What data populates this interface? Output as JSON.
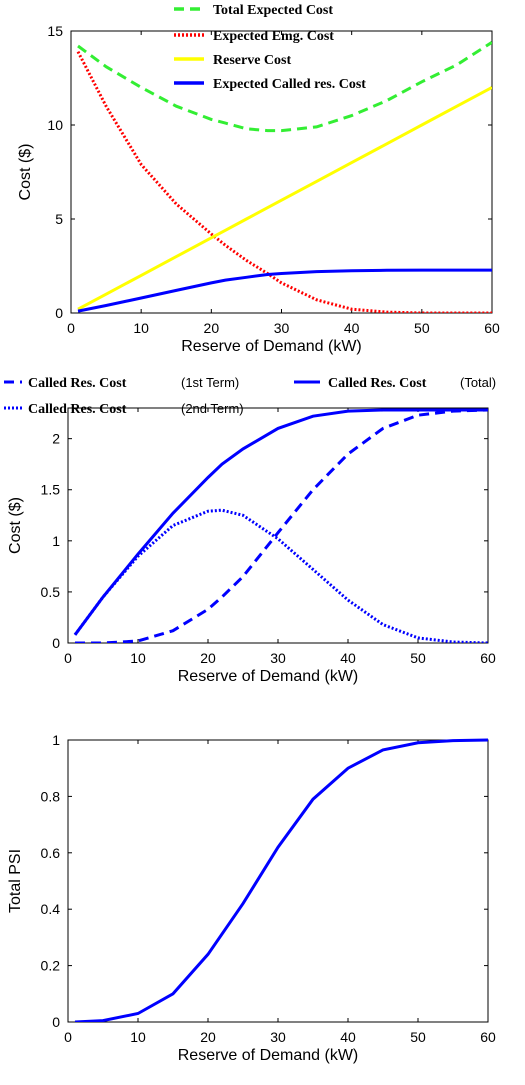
{
  "chart_data": [
    {
      "type": "line",
      "xlabel": "Reserve of Demand (kW)",
      "ylabel": "Cost ($)",
      "xlim": [
        0,
        60
      ],
      "ylim": [
        0,
        15
      ],
      "xticks": [
        0,
        10,
        20,
        30,
        40,
        50,
        60
      ],
      "yticks": [
        0,
        5,
        10,
        15
      ],
      "x": [
        1,
        5,
        10,
        15,
        20,
        22,
        25,
        28,
        30,
        35,
        40,
        45,
        50,
        55,
        60
      ],
      "series": [
        {
          "name": "Total Expected Cost",
          "color": "#33ee33",
          "style": "dashed",
          "values": [
            14.2,
            13.1,
            12.0,
            11.0,
            10.3,
            10.1,
            9.8,
            9.7,
            9.7,
            9.9,
            10.5,
            11.3,
            12.3,
            13.2,
            14.4
          ]
        },
        {
          "name": "Expected Emg. Cost",
          "color": "#ff0000",
          "style": "dotted",
          "values": [
            13.9,
            11.0,
            7.9,
            5.8,
            4.2,
            3.6,
            2.8,
            2.1,
            1.6,
            0.7,
            0.2,
            0.05,
            0.0,
            0.0,
            0.0
          ]
        },
        {
          "name": "Reserve Cost",
          "color": "#ffff00",
          "style": "solid",
          "values": [
            0.2,
            1.0,
            2.0,
            3.0,
            4.0,
            4.4,
            5.0,
            5.6,
            6.0,
            7.0,
            8.0,
            9.0,
            10.0,
            11.0,
            12.0
          ]
        },
        {
          "name": "Expected Called res. Cost",
          "color": "#0000ff",
          "style": "solid",
          "values": [
            0.1,
            0.4,
            0.8,
            1.2,
            1.6,
            1.75,
            1.9,
            2.05,
            2.1,
            2.2,
            2.25,
            2.27,
            2.28,
            2.28,
            2.28
          ]
        }
      ]
    },
    {
      "type": "line",
      "xlabel": "Reserve of Demand (kW)",
      "ylabel": "Cost ($)",
      "xlim": [
        0,
        60
      ],
      "ylim": [
        0,
        2.3
      ],
      "xticks": [
        0,
        10,
        20,
        30,
        40,
        50,
        60
      ],
      "yticks": [
        0,
        0.5,
        1,
        1.5,
        2
      ],
      "x": [
        1,
        5,
        10,
        15,
        20,
        22,
        25,
        30,
        35,
        40,
        45,
        50,
        55,
        60
      ],
      "legend_annotations": {
        "term1": "(1st Term)",
        "total": "(Total)",
        "term2": "(2nd Term)"
      },
      "series": [
        {
          "name": "Called Res. Cost",
          "color": "#0000ff",
          "style": "dashed",
          "values": [
            0.0,
            0.0,
            0.02,
            0.12,
            0.33,
            0.45,
            0.65,
            1.08,
            1.5,
            1.85,
            2.1,
            2.23,
            2.27,
            2.28
          ]
        },
        {
          "name": "Called Res. Cost",
          "color": "#0000ff",
          "style": "solid",
          "values": [
            0.08,
            0.45,
            0.87,
            1.27,
            1.62,
            1.75,
            1.9,
            2.1,
            2.22,
            2.27,
            2.28,
            2.28,
            2.28,
            2.28
          ]
        },
        {
          "name": "Called Res. Cost",
          "color": "#0000ff",
          "style": "dotted",
          "values": [
            0.08,
            0.45,
            0.85,
            1.15,
            1.29,
            1.3,
            1.25,
            1.02,
            0.72,
            0.42,
            0.18,
            0.05,
            0.01,
            0.0
          ]
        }
      ]
    },
    {
      "type": "line",
      "xlabel": "Reserve of Demand (kW)",
      "ylabel": "Total PSI",
      "xlim": [
        0,
        60
      ],
      "ylim": [
        0,
        1
      ],
      "xticks": [
        0,
        10,
        20,
        30,
        40,
        50,
        60
      ],
      "yticks": [
        0,
        0.2,
        0.4,
        0.6,
        0.8,
        1
      ],
      "x": [
        1,
        5,
        10,
        15,
        20,
        25,
        30,
        35,
        40,
        45,
        50,
        55,
        60
      ],
      "series": [
        {
          "name": "",
          "color": "#0000ff",
          "style": "solid",
          "values": [
            0.0,
            0.005,
            0.03,
            0.1,
            0.24,
            0.42,
            0.62,
            0.79,
            0.9,
            0.965,
            0.99,
            0.998,
            1.0
          ]
        }
      ]
    }
  ]
}
